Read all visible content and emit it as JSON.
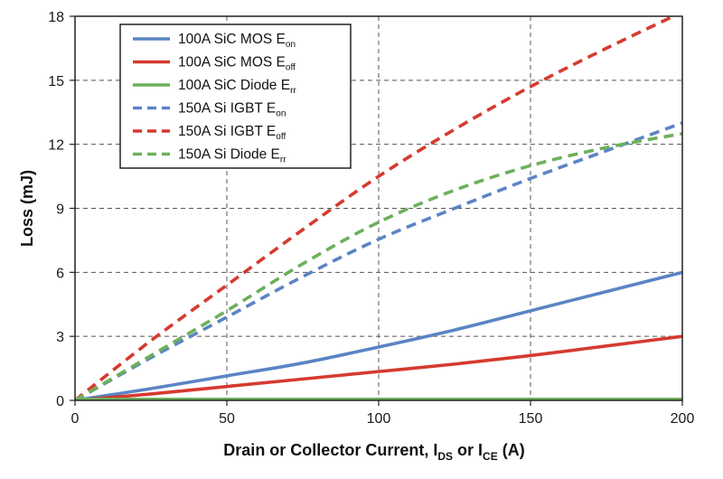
{
  "chart_data": {
    "type": "line",
    "xlabel": {
      "text": "Drain or Collector Current, I",
      "sub1": "DS",
      "mid": " or I",
      "sub2": "CE",
      "tail": " (A)"
    },
    "ylabel": "Loss (mJ)",
    "xlim": [
      0,
      200
    ],
    "ylim": [
      0,
      18
    ],
    "xticks": [
      0,
      50,
      100,
      150,
      200
    ],
    "yticks": [
      0,
      3,
      6,
      9,
      12,
      15,
      18
    ],
    "grid": true,
    "legend_position": "top-left",
    "x": [
      0,
      25,
      50,
      75,
      100,
      125,
      150,
      175,
      200
    ],
    "series": [
      {
        "name": "100A SiC MOS E",
        "sub": "on",
        "color": "#5b84c4",
        "dash": false,
        "values": [
          0,
          0.55,
          1.15,
          1.75,
          2.5,
          3.3,
          4.2,
          5.1,
          6.0
        ]
      },
      {
        "name": "100A SiC MOS E",
        "sub": "off",
        "color": "#d63a2f",
        "dash": false,
        "values": [
          0,
          0.3,
          0.65,
          1.0,
          1.35,
          1.7,
          2.1,
          2.55,
          3.0
        ]
      },
      {
        "name": "100A SiC Diode E",
        "sub": "rr",
        "color": "#6db05a",
        "dash": false,
        "values": [
          0.05,
          0.05,
          0.05,
          0.05,
          0.05,
          0.05,
          0.05,
          0.05,
          0.05
        ]
      },
      {
        "name": "150A Si IGBT E",
        "sub": "on",
        "color": "#5b84c4",
        "dash": true,
        "values": [
          0,
          2.0,
          3.9,
          5.8,
          7.55,
          9.0,
          10.4,
          11.7,
          13.0
        ]
      },
      {
        "name": "150A Si IGBT E",
        "sub": "off",
        "color": "#d63a2f",
        "dash": true,
        "values": [
          0,
          2.8,
          5.4,
          8.0,
          10.5,
          12.7,
          14.7,
          16.5,
          18.2
        ]
      },
      {
        "name": "150A Si Diode E",
        "sub": "rr",
        "color": "#6db05a",
        "dash": true,
        "values": [
          0,
          2.1,
          4.2,
          6.4,
          8.35,
          9.85,
          11.0,
          11.85,
          12.5
        ]
      }
    ]
  }
}
